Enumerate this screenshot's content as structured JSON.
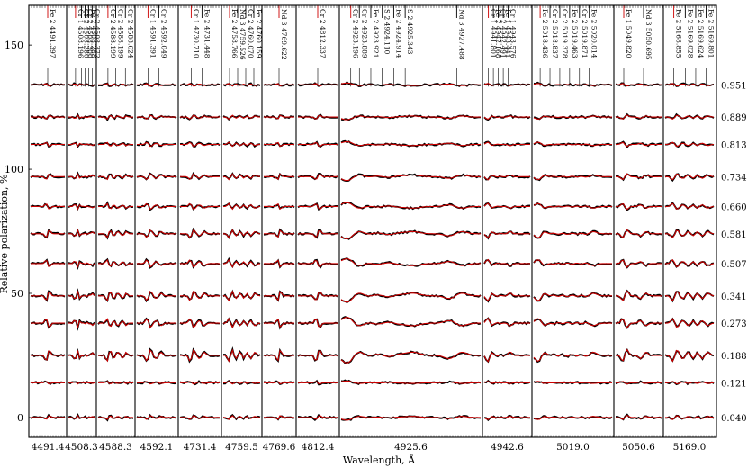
{
  "chart_data": {
    "type": "line",
    "title": "",
    "xlabel": "Wavelength, Å",
    "ylabel": "Relative polarization, %",
    "ylim": [
      -8,
      166
    ],
    "y_ticks": [
      "0",
      "50",
      "100",
      "150"
    ],
    "y_tick_values": [
      0,
      50,
      100,
      150
    ],
    "series_colors": {
      "observed": "#000000",
      "model": "#cc0000"
    },
    "phases": [
      "0.951",
      "0.889",
      "0.813",
      "0.734",
      "0.660",
      "0.581",
      "0.507",
      "0.341",
      "0.273",
      "0.188",
      "0.121",
      "0.040"
    ],
    "phase_offsets": [
      134,
      121,
      110,
      97,
      85,
      74,
      62,
      49,
      38,
      25,
      14,
      0
    ],
    "panels": [
      {
        "center": "4491.4",
        "width": 42,
        "lines": [
          {
            "label": "Fe 2 4491.397",
            "pos": 0.5
          }
        ]
      },
      {
        "center": "4508.3",
        "width": 33,
        "lines": [
          {
            "label": "Cr 1 4508.196",
            "pos": 0.3
          },
          {
            "label": "Cr 2 4508.280",
            "pos": 0.5
          },
          {
            "label": "Cr 2 4508.300",
            "pos": 0.62
          },
          {
            "label": "Fe 2 4508.288",
            "pos": 0.74
          },
          {
            "label": "Cr 2 4508.372",
            "pos": 0.86
          }
        ]
      },
      {
        "center": "4588.3",
        "width": 43,
        "lines": [
          {
            "label": "Cr 2 4588.199",
            "pos": 0.3
          },
          {
            "label": "Cr 2 4588.199",
            "pos": 0.5
          },
          {
            "label": "Cr 2 4588.624",
            "pos": 0.75
          }
        ]
      },
      {
        "center": "4592.1",
        "width": 48,
        "lines": [
          {
            "label": "Cr 1 4591.391",
            "pos": 0.3
          },
          {
            "label": "Cr 2 4592.049",
            "pos": 0.55
          }
        ]
      },
      {
        "center": "4731.4",
        "width": 48,
        "lines": [
          {
            "label": "Cr 1 4730.710",
            "pos": 0.3
          },
          {
            "label": "Fe 2 4731.448",
            "pos": 0.55
          }
        ]
      },
      {
        "center": "4759.5",
        "width": 45,
        "lines": [
          {
            "label": "Fe 2 4758.766",
            "pos": 0.2
          },
          {
            "label": "Nd 3 4759.526",
            "pos": 0.4
          },
          {
            "label": "Cr 2 4760.070",
            "pos": 0.6
          },
          {
            "label": "Fe 2 4760.159",
            "pos": 0.8
          }
        ]
      },
      {
        "center": "4769.6",
        "width": 38,
        "lines": [
          {
            "label": "Nd 3 4769.622",
            "pos": 0.5
          }
        ]
      },
      {
        "center": "4812.4",
        "width": 48,
        "lines": [
          {
            "label": "Cr 2 4812.337",
            "pos": 0.5
          }
        ]
      },
      {
        "center": "4925.6",
        "width": 159,
        "lines": [
          {
            "label": "Cr 2 4923.196",
            "pos": 0.08
          },
          {
            "label": "Cr 2 4923.889",
            "pos": 0.14
          },
          {
            "label": "Fe 2 4923.921",
            "pos": 0.22
          },
          {
            "label": "S 2 4924.110",
            "pos": 0.3
          },
          {
            "label": "Fe 2 4924.914",
            "pos": 0.38
          },
          {
            "label": "S 2 4925.343",
            "pos": 0.46
          },
          {
            "label": "Nd 3 4927.488",
            "pos": 0.82
          }
        ]
      },
      {
        "center": "4942.6",
        "width": 55,
        "lines": [
          {
            "label": "Cr 1 4941.801",
            "pos": 0.12
          },
          {
            "label": "Fe 2 4942.168",
            "pos": 0.22
          },
          {
            "label": "Cr 2 4942.491",
            "pos": 0.32
          },
          {
            "label": "Fe 1 4943.441",
            "pos": 0.42
          },
          {
            "label": "Cr 1 4943.576",
            "pos": 0.52
          }
        ]
      },
      {
        "center": "5019.0",
        "width": 91,
        "lines": [
          {
            "label": "Fe 2 5018.436",
            "pos": 0.1
          },
          {
            "label": "Cr 2 5018.837",
            "pos": 0.22
          },
          {
            "label": "Cr 2 5019.378",
            "pos": 0.34
          },
          {
            "label": "Fe 2 5019.463",
            "pos": 0.46
          },
          {
            "label": "Cr 2 5019.871",
            "pos": 0.58
          },
          {
            "label": "Fe 2 5020.014",
            "pos": 0.7
          }
        ]
      },
      {
        "center": "5050.6",
        "width": 55,
        "lines": [
          {
            "label": "Fe 1 5049.820",
            "pos": 0.2
          },
          {
            "label": "Nd 3 5050.695",
            "pos": 0.6
          }
        ]
      },
      {
        "center": "5169.0",
        "width": 58,
        "lines": [
          {
            "label": "Fe 2 5168.855",
            "pos": 0.2
          },
          {
            "label": "Fe 2 5169.028",
            "pos": 0.42
          },
          {
            "label": "Fe 2 5169.624",
            "pos": 0.62
          },
          {
            "label": "Fe 2 5169.801",
            "pos": 0.82
          }
        ]
      }
    ]
  }
}
